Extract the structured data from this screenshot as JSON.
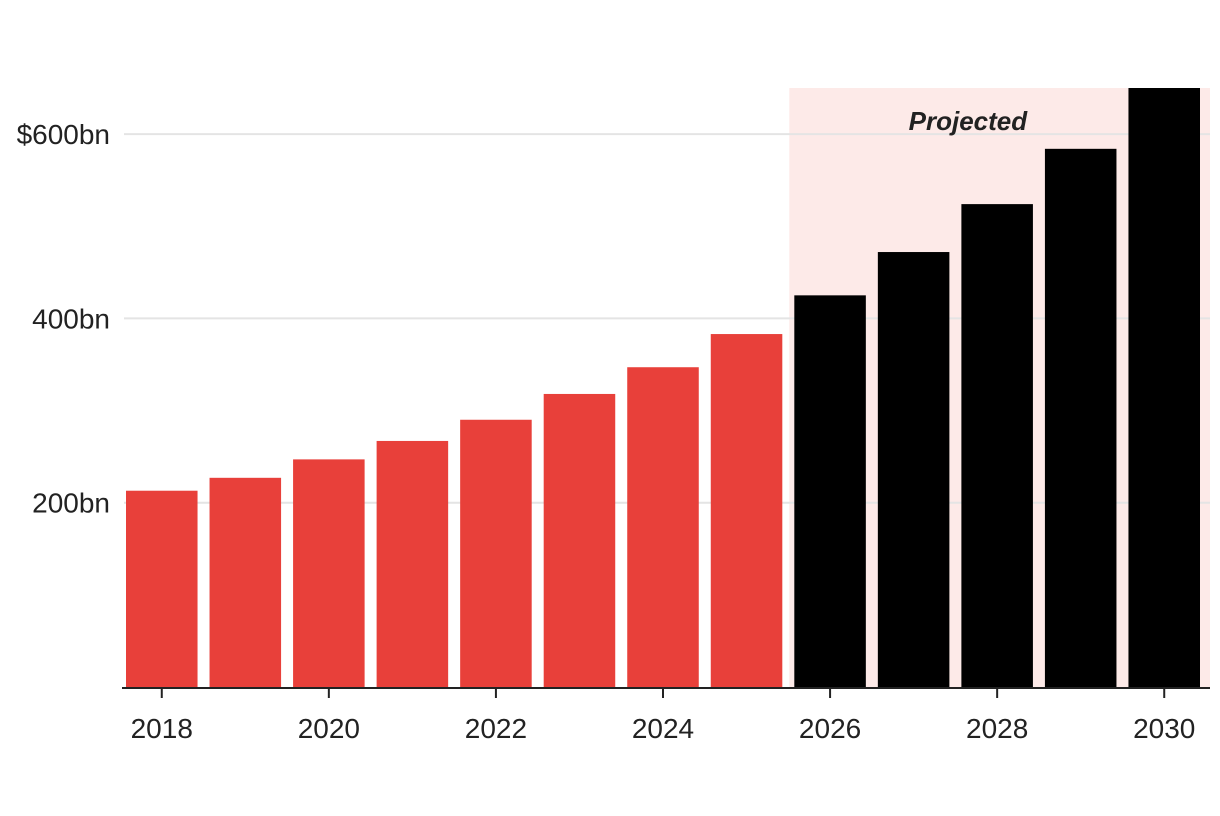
{
  "chart_data": {
    "type": "bar",
    "title": "",
    "xlabel": "",
    "ylabel": "",
    "categories": [
      "2018",
      "2019",
      "2020",
      "2021",
      "2022",
      "2023",
      "2024",
      "2025",
      "2026",
      "2027",
      "2028",
      "2029",
      "2030"
    ],
    "values": [
      213,
      227,
      247,
      267,
      290,
      318,
      347,
      383,
      425,
      472,
      524,
      584,
      650
    ],
    "projected_from": "2026",
    "ylim": [
      0,
      650
    ],
    "y_ticks": [
      200,
      400,
      600
    ],
    "y_tick_labels": [
      "200bn",
      "400bn",
      "$600bn"
    ],
    "x_tick_labels": [
      "2018",
      "2020",
      "2022",
      "2024",
      "2026",
      "2028",
      "2030"
    ],
    "annotation": "Projected",
    "grid": true,
    "colors": {
      "actual": "#e8403a",
      "projected": "#000000",
      "projected_band": "#fdeae8",
      "grid": "#e4e4e4",
      "axis": "#222222"
    }
  }
}
